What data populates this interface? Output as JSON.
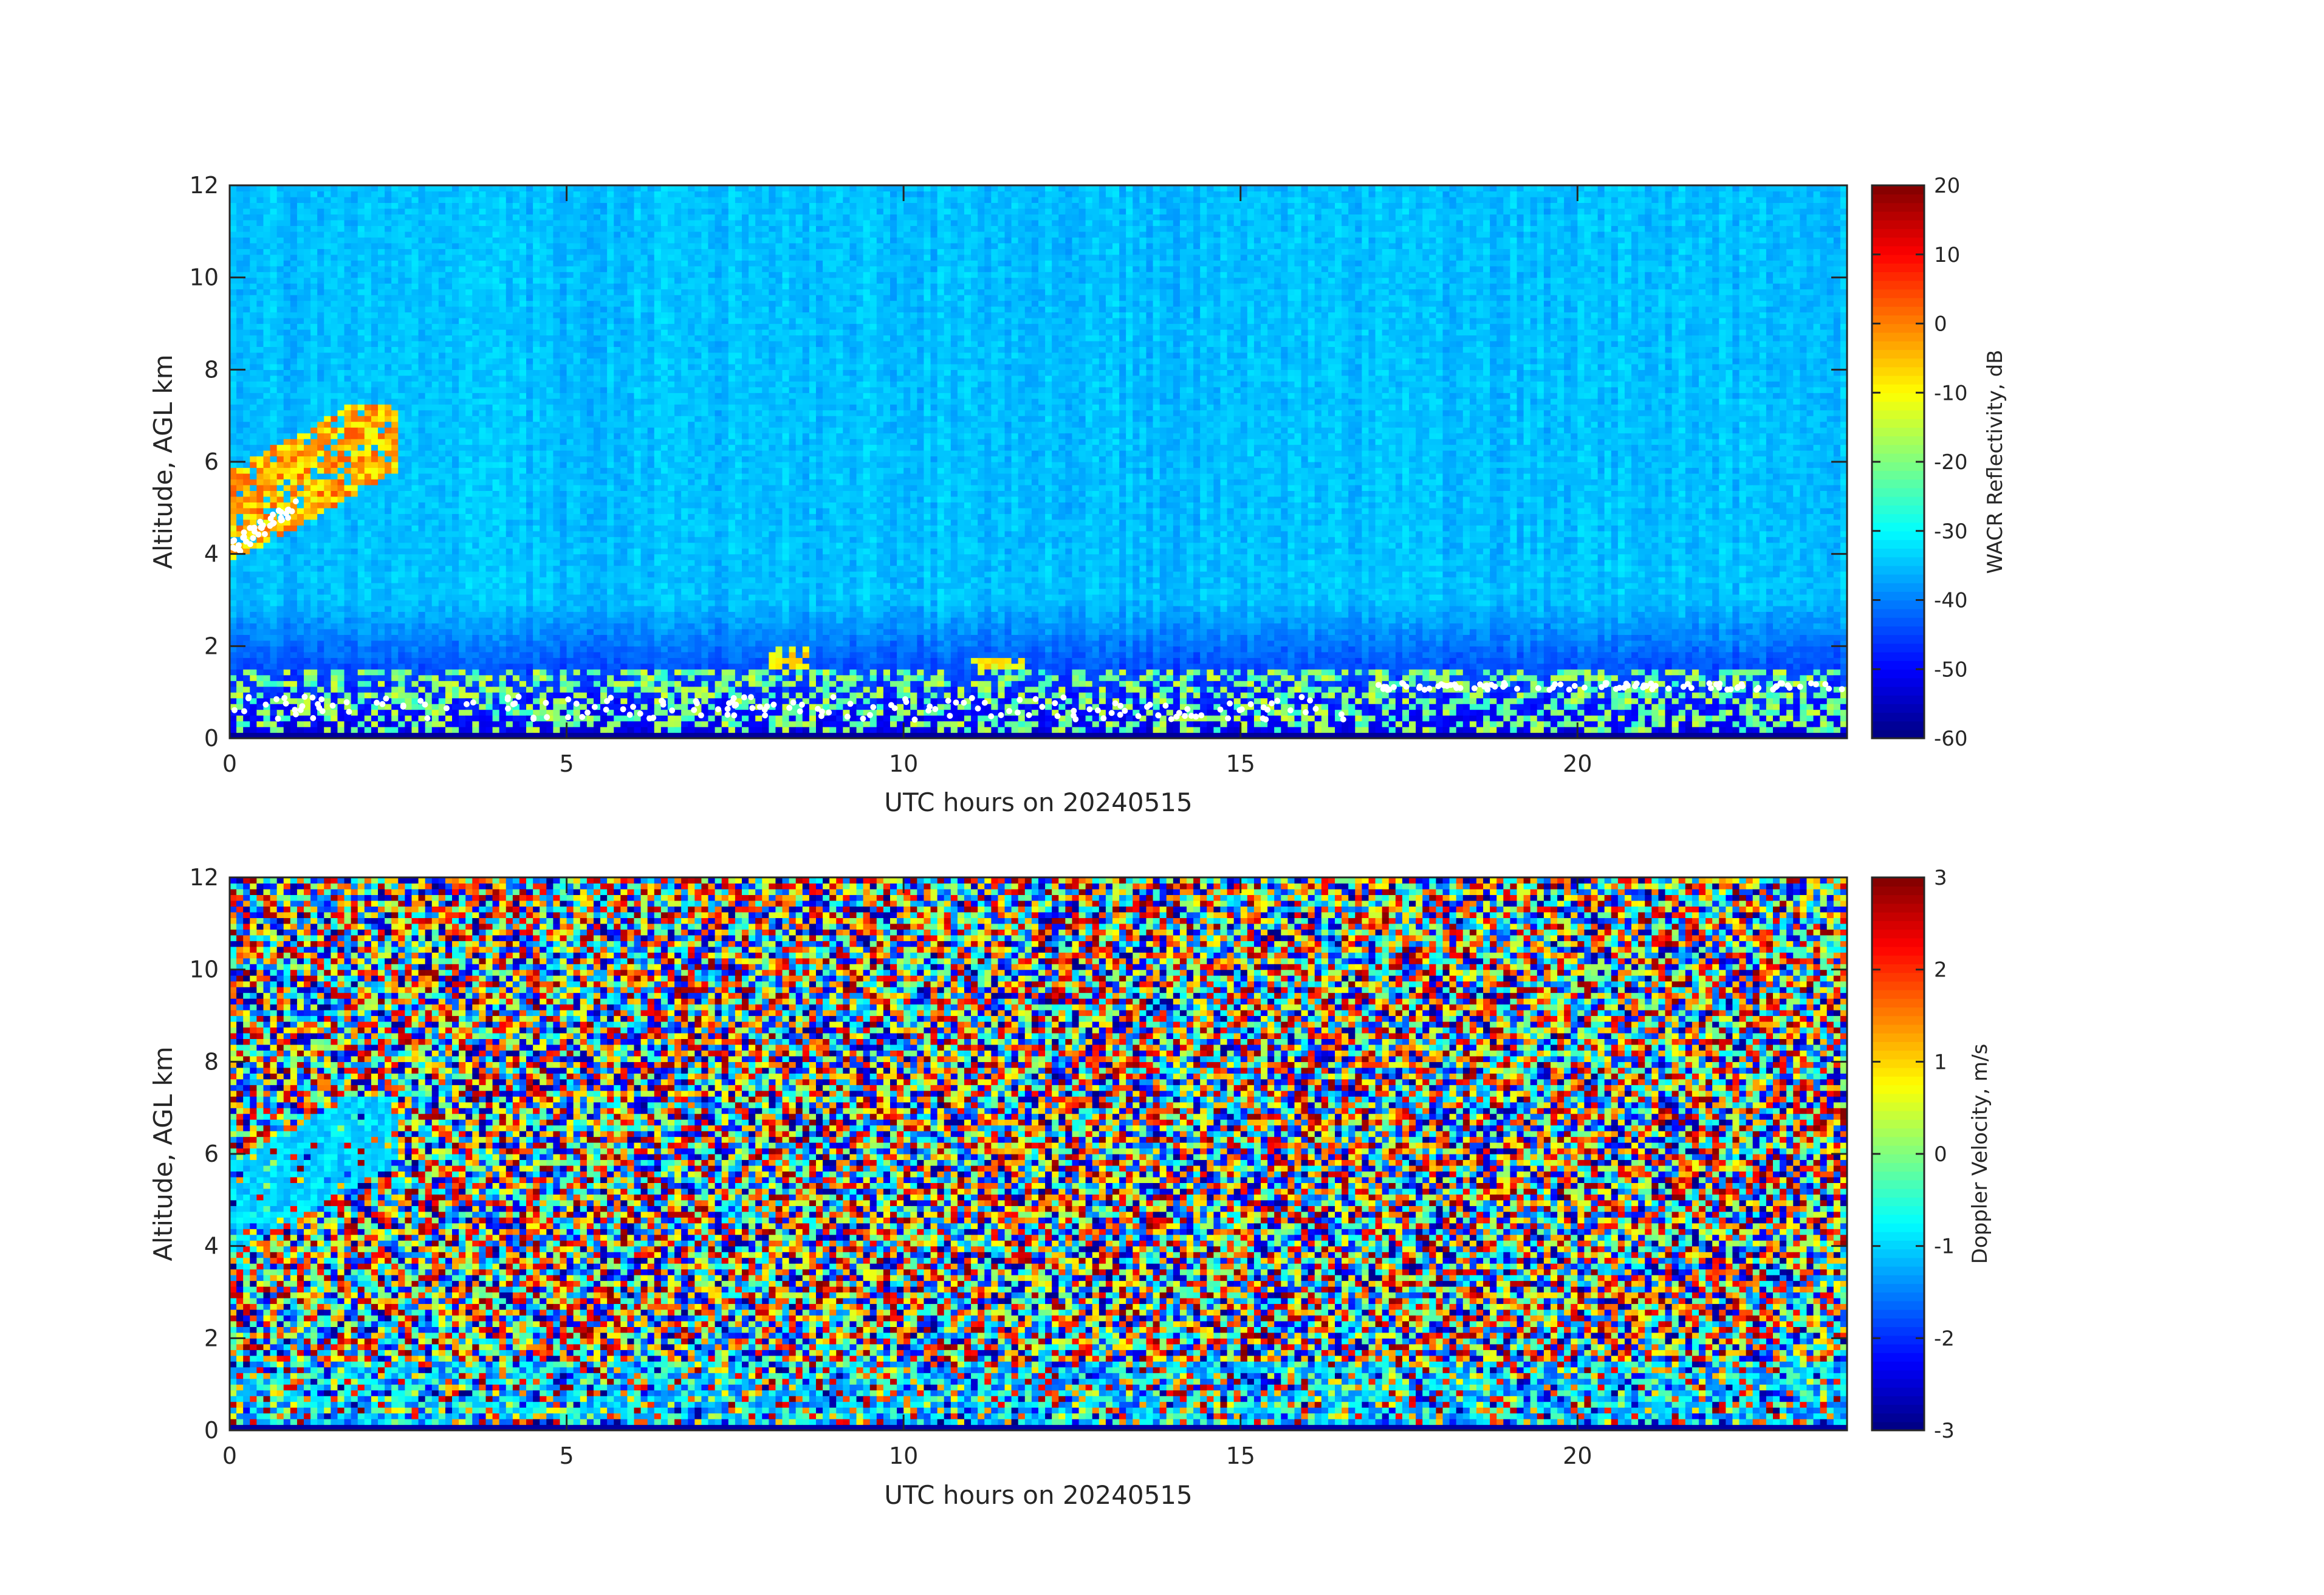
{
  "figure": {
    "background": "#ffffff"
  },
  "chart_data": [
    {
      "type": "heatmap",
      "title": "",
      "xlabel": "UTC hours on 20240515",
      "ylabel": "Altitude, AGL km",
      "xlim": [
        0,
        24
      ],
      "ylim": [
        0,
        12
      ],
      "xticks": [
        0,
        5,
        10,
        15,
        20
      ],
      "yticks": [
        0,
        2,
        4,
        6,
        8,
        10,
        12
      ],
      "grid": false,
      "colormap": "jet",
      "colorbar": {
        "label": "WACR Reflectivity, dB",
        "range": [
          -60,
          20
        ],
        "ticks": [
          -60,
          -50,
          -40,
          -30,
          -20,
          -10,
          0,
          10,
          20
        ]
      },
      "background_value": -35,
      "features": [
        {
          "name": "low cloud band",
          "x_range": [
            0,
            24
          ],
          "altitude_km": [
            0.1,
            1.5
          ],
          "value": -20
        },
        {
          "name": "mid-level cloud",
          "x_range": [
            0.0,
            2.5
          ],
          "altitude_km": [
            3.8,
            7.3
          ],
          "value": 0
        },
        {
          "name": "convective core",
          "x_range": [
            8.0,
            8.6
          ],
          "altitude_km": [
            0.1,
            2.0
          ],
          "value": 0
        },
        {
          "name": "convective core",
          "x_range": [
            11.0,
            11.8
          ],
          "altitude_km": [
            0.1,
            1.7
          ],
          "value": 0
        }
      ],
      "cloud_base_markers": "white dots",
      "colors": {
        "markers": "#ffffff"
      }
    },
    {
      "type": "heatmap",
      "title": "",
      "xlabel": "UTC hours on 20240515",
      "ylabel": "Altitude, AGL km",
      "xlim": [
        0,
        24
      ],
      "ylim": [
        0,
        12
      ],
      "xticks": [
        0,
        5,
        10,
        15,
        20
      ],
      "yticks": [
        0,
        2,
        4,
        6,
        8,
        10,
        12
      ],
      "grid": false,
      "colormap": "jet",
      "colorbar": {
        "label": "Doppler Velocity, m/s",
        "range": [
          -3,
          3
        ],
        "ticks": [
          -3,
          -2,
          -1,
          0,
          1,
          2,
          3
        ]
      },
      "background": "noise",
      "features": [
        {
          "name": "low cloud band",
          "x_range": [
            0,
            24
          ],
          "altitude_km": [
            0.1,
            1.5
          ],
          "value": -1
        },
        {
          "name": "mid-level cloud",
          "x_range": [
            0.0,
            2.5
          ],
          "altitude_km": [
            3.8,
            7.3
          ],
          "value": -1
        }
      ]
    }
  ]
}
